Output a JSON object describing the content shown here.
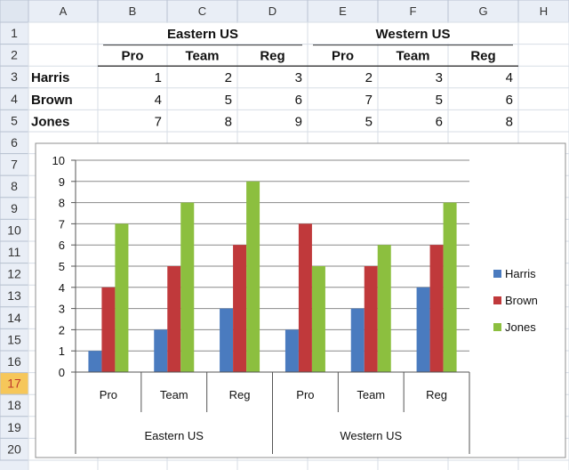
{
  "spreadsheet": {
    "column_headers": [
      "A",
      "B",
      "C",
      "D",
      "E",
      "F",
      "G",
      "H"
    ],
    "row_headers": [
      "1",
      "2",
      "3",
      "4",
      "5",
      "6",
      "7",
      "8",
      "9",
      "10",
      "11",
      "12",
      "13",
      "14",
      "15",
      "16",
      "17",
      "18",
      "19",
      "20"
    ],
    "selected_row": "17",
    "region_headers": [
      "Eastern US",
      "Western US"
    ],
    "sub_headers": [
      "Pro",
      "Team",
      "Reg",
      "Pro",
      "Team",
      "Reg"
    ],
    "rows": [
      {
        "name": "Harris",
        "values": [
          "1",
          "2",
          "3",
          "2",
          "3",
          "4"
        ]
      },
      {
        "name": "Brown",
        "values": [
          "4",
          "5",
          "6",
          "7",
          "5",
          "6"
        ]
      },
      {
        "name": "Jones",
        "values": [
          "7",
          "8",
          "9",
          "5",
          "6",
          "8"
        ]
      }
    ]
  },
  "chart_data": {
    "type": "bar",
    "title": "",
    "xlabel": "",
    "ylabel": "",
    "ylim": [
      0,
      10
    ],
    "yticks": [
      "0",
      "1",
      "2",
      "3",
      "4",
      "5",
      "6",
      "7",
      "8",
      "9",
      "10"
    ],
    "grid": true,
    "legend_position": "right",
    "categories": [
      "Pro",
      "Team",
      "Reg",
      "Pro",
      "Team",
      "Reg"
    ],
    "groups": [
      "Eastern US",
      "Western US"
    ],
    "series": [
      {
        "name": "Harris",
        "values": [
          1,
          2,
          3,
          2,
          3,
          4
        ],
        "color": "#4a7bbf"
      },
      {
        "name": "Brown",
        "values": [
          4,
          5,
          6,
          7,
          5,
          6
        ],
        "color": "#c0393b"
      },
      {
        "name": "Jones",
        "values": [
          7,
          8,
          9,
          5,
          6,
          8
        ],
        "color": "#8cbf3f"
      }
    ]
  },
  "colors": {
    "header_bg": "#e9eef6",
    "selected_header_bg": "#f6c75a",
    "gridline": "#d7dde6"
  }
}
